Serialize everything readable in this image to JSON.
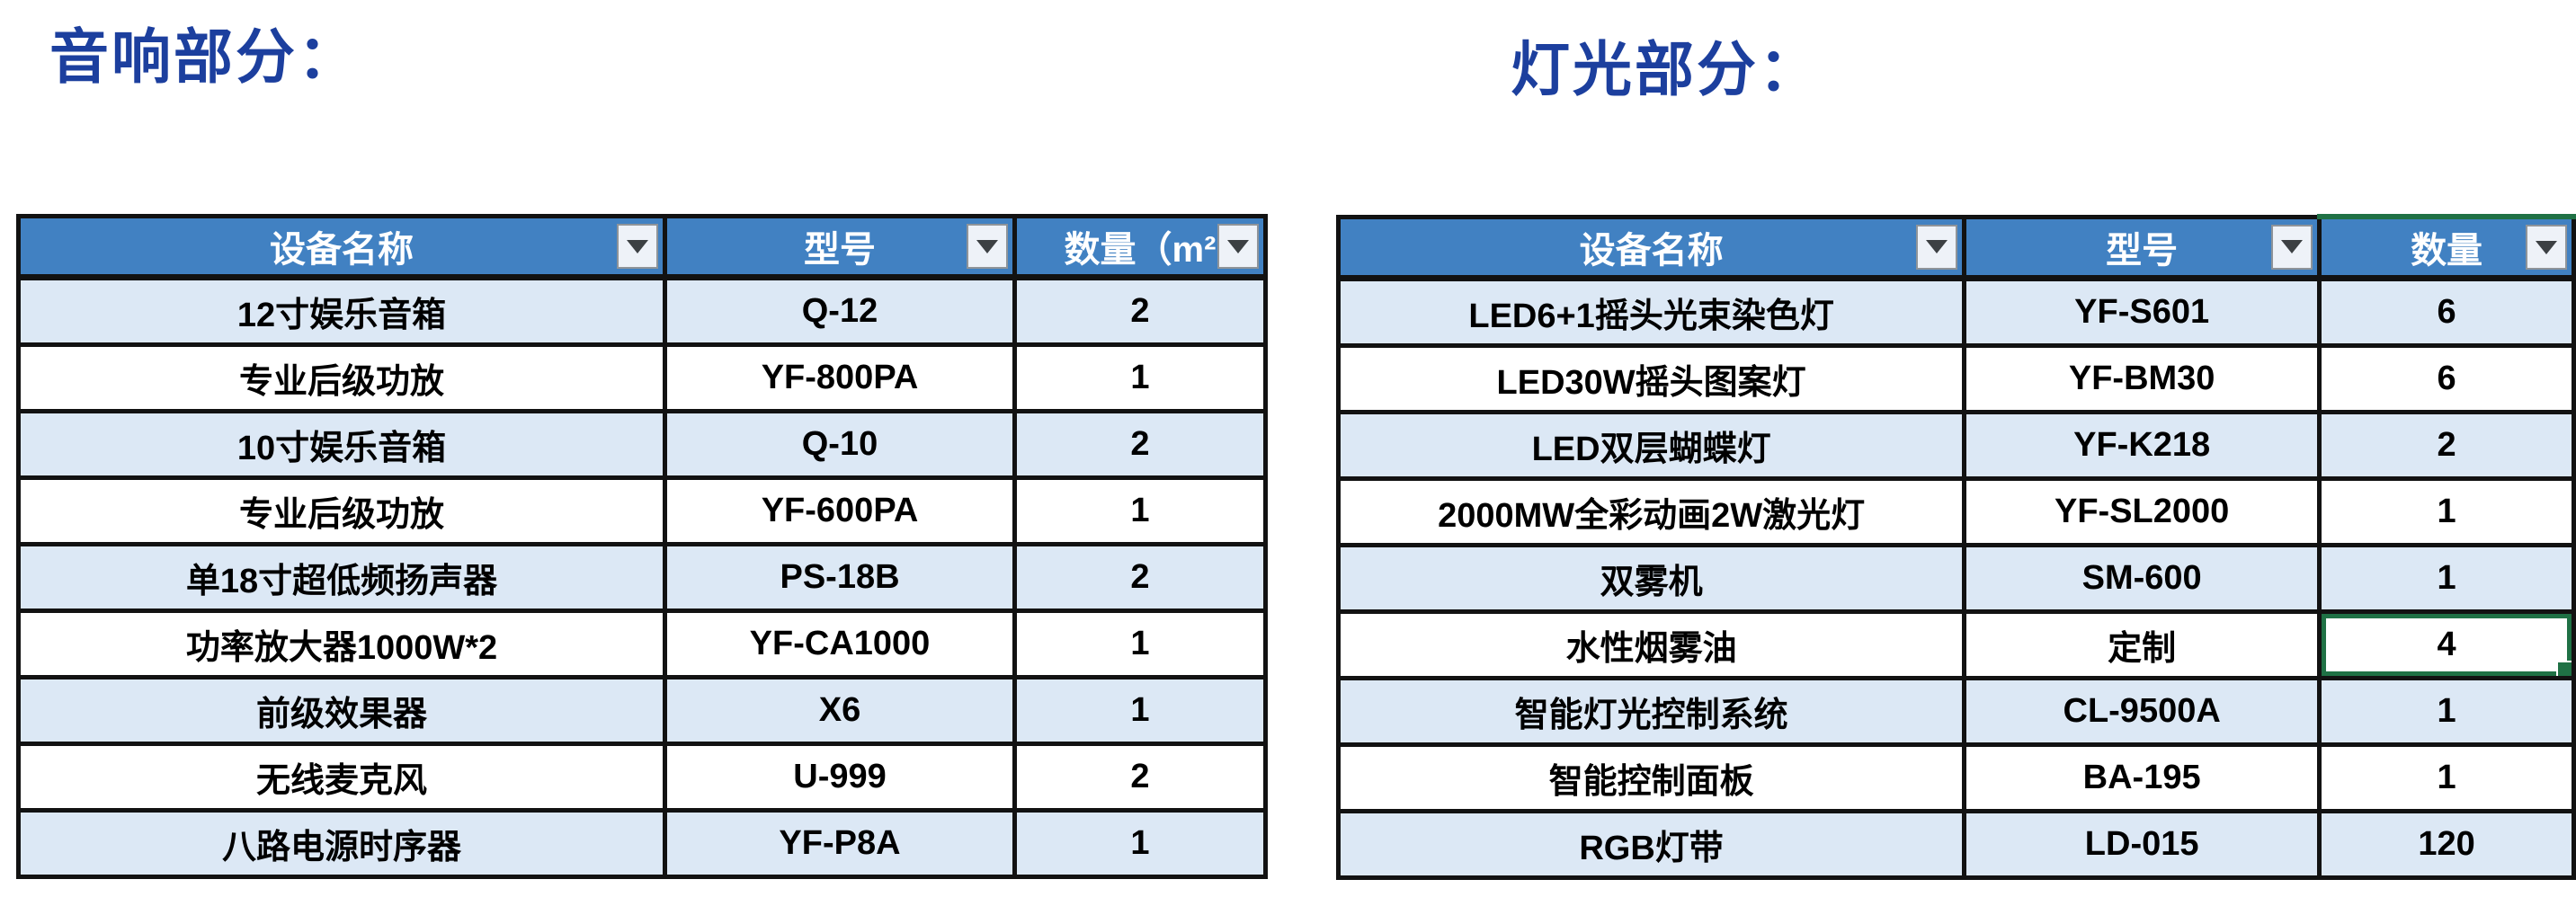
{
  "colors": {
    "title_blue": "#1c3f9e",
    "header_blue": "#4181c2",
    "row_alt": "#dce8f5",
    "grid_border": "#121212",
    "sel_green": "#1f7145",
    "header_text": "#ffffff"
  },
  "icons": {
    "filter_dropdown": "▼",
    "fill_handle": "green-square"
  },
  "sections": [
    {
      "title": "音响部分：",
      "table": {
        "columns": [
          "设备名称",
          "型号",
          "数量（m²"
        ],
        "rows": [
          [
            "12寸娱乐音箱",
            "Q-12",
            "2"
          ],
          [
            "专业后级功放",
            "YF-800PA",
            "1"
          ],
          [
            "10寸娱乐音箱",
            "Q-10",
            "2"
          ],
          [
            "专业后级功放",
            "YF-600PA",
            "1"
          ],
          [
            "单18寸超低频扬声器",
            "PS-18B",
            "2"
          ],
          [
            "功率放大器1000W*2",
            "YF-CA1000",
            "1"
          ],
          [
            "前级效果器",
            "X6",
            "1"
          ],
          [
            "无线麦克风",
            "U-999",
            "2"
          ],
          [
            "八路电源时序器",
            "YF-P8A",
            "1"
          ]
        ]
      }
    },
    {
      "title": "灯光部分：",
      "table": {
        "columns": [
          "设备名称",
          "型号",
          "数量"
        ],
        "rows": [
          [
            "LED6+1摇头光束染色灯",
            "YF-S601",
            "6"
          ],
          [
            "LED30W摇头图案灯",
            "YF-BM30",
            "6"
          ],
          [
            "LED双层蝴蝶灯",
            "YF-K218",
            "2"
          ],
          [
            "2000MW全彩动画2W激光灯",
            "YF-SL2000",
            "1"
          ],
          [
            "双雾机",
            "SM-600",
            "1"
          ],
          [
            "水性烟雾油",
            "定制",
            "4"
          ],
          [
            "智能灯光控制系统",
            "CL-9500A",
            "1"
          ],
          [
            "智能控制面板",
            "BA-195",
            "1"
          ],
          [
            "RGB灯带",
            "LD-015",
            "120"
          ]
        ],
        "selected_cell": {
          "row": 5,
          "col": 2
        },
        "qty_header_green_top": true
      }
    }
  ]
}
